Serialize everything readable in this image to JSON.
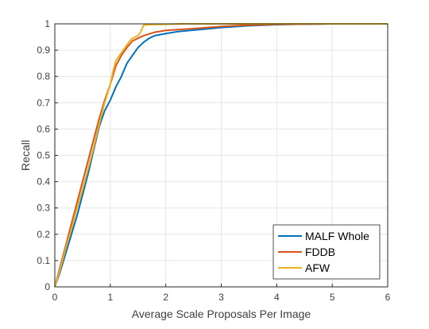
{
  "chart_data": {
    "type": "line",
    "xlabel": "Average Scale Proposals Per Image",
    "ylabel": "Recall",
    "xlim": [
      0,
      6
    ],
    "ylim": [
      0,
      1
    ],
    "x_ticks": [
      "0",
      "1",
      "2",
      "3",
      "4",
      "5",
      "6"
    ],
    "y_ticks": [
      "0",
      "0.1",
      "0.2",
      "0.3",
      "0.4",
      "0.5",
      "0.6",
      "0.7",
      "0.8",
      "0.9",
      "1"
    ],
    "grid": true,
    "legend_position": "bottom-right",
    "series": [
      {
        "name": "MALF Whole",
        "color": "#0072BD",
        "points": [
          [
            0,
            0
          ],
          [
            0.1,
            0.06
          ],
          [
            0.2,
            0.13
          ],
          [
            0.3,
            0.2
          ],
          [
            0.4,
            0.27
          ],
          [
            0.5,
            0.35
          ],
          [
            0.6,
            0.43
          ],
          [
            0.7,
            0.52
          ],
          [
            0.8,
            0.61
          ],
          [
            0.9,
            0.67
          ],
          [
            1.0,
            0.71
          ],
          [
            1.1,
            0.76
          ],
          [
            1.2,
            0.8
          ],
          [
            1.3,
            0.85
          ],
          [
            1.4,
            0.88
          ],
          [
            1.5,
            0.91
          ],
          [
            1.6,
            0.93
          ],
          [
            1.7,
            0.945
          ],
          [
            1.8,
            0.955
          ],
          [
            2.0,
            0.963
          ],
          [
            2.2,
            0.97
          ],
          [
            2.5,
            0.976
          ],
          [
            3.0,
            0.986
          ],
          [
            3.5,
            0.993
          ],
          [
            4.0,
            0.997
          ],
          [
            4.5,
            0.999
          ],
          [
            5.0,
            1.0
          ],
          [
            6.0,
            1.0
          ]
        ]
      },
      {
        "name": "FDDB",
        "color": "#D95319",
        "points": [
          [
            0,
            0
          ],
          [
            0.1,
            0.08
          ],
          [
            0.2,
            0.16
          ],
          [
            0.3,
            0.24
          ],
          [
            0.4,
            0.32
          ],
          [
            0.5,
            0.4
          ],
          [
            0.6,
            0.48
          ],
          [
            0.7,
            0.56
          ],
          [
            0.8,
            0.64
          ],
          [
            0.9,
            0.71
          ],
          [
            1.0,
            0.77
          ],
          [
            1.1,
            0.84
          ],
          [
            1.2,
            0.88
          ],
          [
            1.3,
            0.91
          ],
          [
            1.4,
            0.935
          ],
          [
            1.5,
            0.945
          ],
          [
            1.6,
            0.955
          ],
          [
            1.8,
            0.968
          ],
          [
            2.0,
            0.975
          ],
          [
            2.5,
            0.982
          ],
          [
            3.0,
            0.99
          ],
          [
            3.5,
            0.995
          ],
          [
            4.0,
            0.998
          ],
          [
            5.0,
            1.0
          ],
          [
            6.0,
            1.0
          ]
        ]
      },
      {
        "name": "AFW",
        "color": "#EDB120",
        "points": [
          [
            0,
            0
          ],
          [
            0.1,
            0.07
          ],
          [
            0.2,
            0.15
          ],
          [
            0.3,
            0.22
          ],
          [
            0.4,
            0.3
          ],
          [
            0.5,
            0.37
          ],
          [
            0.6,
            0.45
          ],
          [
            0.7,
            0.53
          ],
          [
            0.8,
            0.62
          ],
          [
            0.9,
            0.7
          ],
          [
            1.0,
            0.77
          ],
          [
            1.05,
            0.82
          ],
          [
            1.1,
            0.86
          ],
          [
            1.2,
            0.89
          ],
          [
            1.3,
            0.92
          ],
          [
            1.35,
            0.935
          ],
          [
            1.4,
            0.945
          ],
          [
            1.5,
            0.955
          ],
          [
            1.55,
            0.97
          ],
          [
            1.6,
            0.995
          ],
          [
            1.7,
            0.997
          ],
          [
            2.0,
            0.998
          ],
          [
            2.3,
            1.0
          ],
          [
            3.0,
            1.0
          ],
          [
            6.0,
            1.0
          ]
        ]
      }
    ]
  }
}
